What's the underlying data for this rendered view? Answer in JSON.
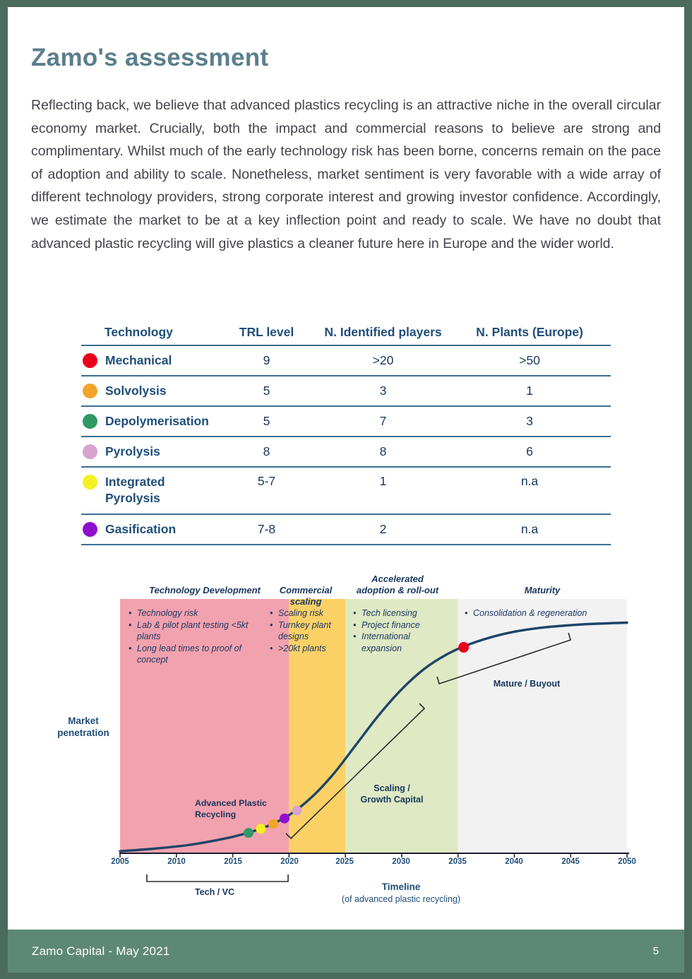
{
  "page": {
    "title": "Zamo's assessment",
    "body": "Reflecting back, we believe that advanced plastics recycling is an attractive niche in the overall circular economy market. Crucially, both the impact and commercial reasons to believe are strong and complimentary. Whilst much of the early technology risk has been borne, concerns remain on the pace of adoption and ability to scale. Nonetheless, market sentiment is very favorable with a wide array of different technology providers, strong corporate interest and growing investor confidence. Accordingly, we estimate the market to be at a key inflection point and ready to scale. We have no doubt that advanced plastic recycling will give plastics a cleaner future here in Europe and the wider world.",
    "footer": {
      "left": "Zamo Capital - May 2021",
      "page_number": "5"
    }
  },
  "colors": {
    "frame": "#4b6b5f",
    "footer_bg": "#5e8876",
    "heading": "#5b7e8d",
    "body_text": "#43434c",
    "table_blue": "#1f4e79",
    "table_line": "#3c6e91",
    "curve": "#1f4468",
    "annotation_navy": "#17365d"
  },
  "table": {
    "headers": [
      "Technology",
      "TRL level",
      "N. Identified players",
      "N. Plants (Europe)"
    ],
    "rows": [
      {
        "technology": "Mechanical",
        "dot_color": "#e8001c",
        "trl": "9",
        "players": ">20",
        "plants": ">50"
      },
      {
        "technology": "Solvolysis",
        "dot_color": "#f2a52a",
        "trl": "5",
        "players": "3",
        "plants": "1"
      },
      {
        "technology": "Depolymerisation",
        "dot_color": "#2f9963",
        "trl": "5",
        "players": "7",
        "plants": "3"
      },
      {
        "technology": "Pyrolysis",
        "dot_color": "#d9a3cd",
        "trl": "8",
        "players": "8",
        "plants": "6"
      },
      {
        "technology": "Integrated Pyrolysis",
        "dot_color": "#f5f021",
        "trl": "5-7",
        "players": "1",
        "plants": "n.a"
      },
      {
        "technology": "Gasification",
        "dot_color": "#8f10cc",
        "trl": "7-8",
        "players": "2",
        "plants": "n.a"
      }
    ]
  },
  "chart_data": {
    "type": "line",
    "title": "Advanced plastic recycling adoption S-curve",
    "xlabel": "Timeline",
    "xlabel_sub": "(of advanced plastic recycling)",
    "ylabel": "Market penetration",
    "xlim": [
      2005,
      2050
    ],
    "x_ticks": [
      "2005",
      "2010",
      "2015",
      "2020",
      "2025",
      "2030",
      "2035",
      "2040",
      "2045",
      "2050"
    ],
    "grid": false,
    "curve_points": [
      [
        2005,
        0.008
      ],
      [
        2008,
        0.018
      ],
      [
        2011,
        0.032
      ],
      [
        2014,
        0.055
      ],
      [
        2016,
        0.076
      ],
      [
        2018,
        0.105
      ],
      [
        2020,
        0.15
      ],
      [
        2022,
        0.22
      ],
      [
        2024,
        0.315
      ],
      [
        2026,
        0.43
      ],
      [
        2028,
        0.545
      ],
      [
        2030,
        0.645
      ],
      [
        2032,
        0.725
      ],
      [
        2034,
        0.782
      ],
      [
        2036,
        0.822
      ],
      [
        2039,
        0.862
      ],
      [
        2042,
        0.885
      ],
      [
        2046,
        0.9
      ],
      [
        2050,
        0.907
      ]
    ],
    "phases": [
      {
        "label": "Technology Development",
        "x_start": 2005,
        "x_end": 2020,
        "color": "#f2a2ae",
        "bullets": [
          "Technology risk",
          "Lab & pilot plant testing <5kt plants",
          "Long lead times to proof of concept"
        ]
      },
      {
        "label": "Commercial scaling",
        "x_start": 2020,
        "x_end": 2025,
        "color": "#fbd166",
        "bullets": [
          "Scaling risk",
          "Turnkey plant designs",
          ">20kt plants"
        ]
      },
      {
        "label": "Accelerated adoption & roll-out",
        "x_start": 2025,
        "x_end": 2035,
        "color": "#dfe9c3",
        "bullets": [
          "Tech licensing",
          "Project finance",
          "International expansion"
        ]
      },
      {
        "label": "Maturity",
        "x_start": 2035,
        "x_end": 2050,
        "color": "#f2f2f2",
        "bullets": [
          "Consolidation & regeneration"
        ]
      }
    ],
    "annotations": [
      {
        "label": "Advanced Plastic Recycling",
        "x": 2014,
        "y": 0.13
      },
      {
        "label": "Tech / VC",
        "x_range": [
          2007.5,
          2020
        ],
        "position": "below-axis"
      },
      {
        "label": "Scaling / Growth Capital",
        "lines": [
          "Scaling /",
          "Growth Capital"
        ],
        "x": 2029,
        "y": 0.3
      },
      {
        "label": "Mature / Buyout",
        "x": 2040,
        "y": 0.78
      }
    ],
    "markers": [
      {
        "tech": "Depolymerisation",
        "color": "#2f9963",
        "year": 2016.4,
        "penetration": 0.08,
        "radius": 7
      },
      {
        "tech": "Integrated Pyrolysis",
        "color": "#f5f021",
        "year": 2017.5,
        "penetration": 0.096,
        "radius": 7
      },
      {
        "tech": "Solvolysis",
        "color": "#f2a52a",
        "year": 2018.6,
        "penetration": 0.115,
        "radius": 7
      },
      {
        "tech": "Gasification",
        "color": "#8f10cc",
        "year": 2019.6,
        "penetration": 0.137,
        "radius": 7
      },
      {
        "tech": "Pyrolysis",
        "color": "#d9a3cd",
        "year": 2020.7,
        "penetration": 0.168,
        "radius": 7
      },
      {
        "tech": "Mechanical",
        "color": "#e8001c",
        "year": 2035.5,
        "penetration": 0.81,
        "radius": 7.5
      }
    ]
  }
}
